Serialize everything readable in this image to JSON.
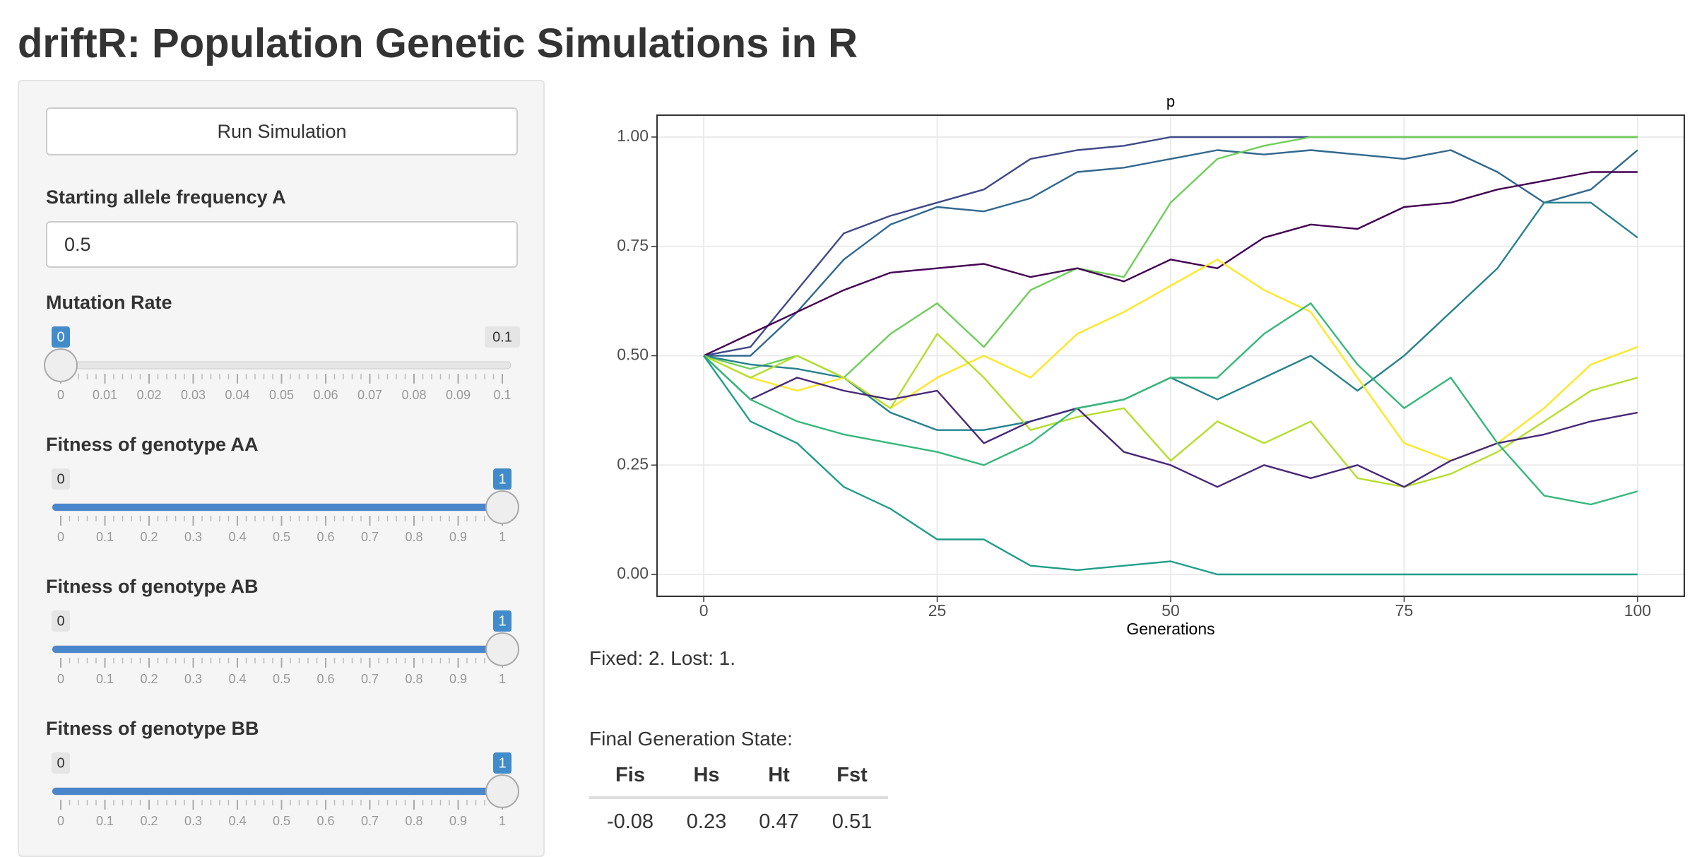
{
  "header": {
    "title": "driftR: Population Genetic Simulations in R"
  },
  "sidebar": {
    "button": "Run Simulation",
    "input": {
      "label": "Starting allele frequency A",
      "value": 0.5
    },
    "sliders": [
      {
        "label": "Mutation Rate",
        "min": 0,
        "max": 0.1,
        "value": 0,
        "ticks": [
          0,
          0.01,
          0.02,
          0.03,
          0.04,
          0.05,
          0.06,
          0.07,
          0.08,
          0.09,
          0.1
        ]
      },
      {
        "label": "Fitness of genotype AA",
        "min": 0,
        "max": 1,
        "value": 1,
        "ticks": [
          0,
          0.1,
          0.2,
          0.3,
          0.4,
          0.5,
          0.6,
          0.7,
          0.8,
          0.9,
          1
        ]
      },
      {
        "label": "Fitness of genotype AB",
        "min": 0,
        "max": 1,
        "value": 1,
        "ticks": [
          0,
          0.1,
          0.2,
          0.3,
          0.4,
          0.5,
          0.6,
          0.7,
          0.8,
          0.9,
          1
        ]
      },
      {
        "label": "Fitness of genotype BB",
        "min": 0,
        "max": 1,
        "value": 1,
        "ticks": [
          0,
          0.1,
          0.2,
          0.3,
          0.4,
          0.5,
          0.6,
          0.7,
          0.8,
          0.9,
          1
        ]
      }
    ]
  },
  "chart_data": {
    "type": "line",
    "title": "p",
    "x_label": "Generations",
    "x": [
      0,
      5,
      10,
      15,
      20,
      25,
      30,
      35,
      40,
      45,
      50,
      55,
      60,
      65,
      70,
      75,
      80,
      85,
      90,
      95,
      100
    ],
    "xlim": [
      -5,
      105
    ],
    "xticks": [
      0,
      25,
      50,
      75,
      100
    ],
    "ylim": [
      -0.05,
      1.05
    ],
    "yticks": [
      {
        "value": 0,
        "label": "0.00"
      },
      {
        "value": 0.25,
        "label": "0.25"
      },
      {
        "value": 0.5,
        "label": "0.50"
      },
      {
        "value": 0.75,
        "label": "0.75"
      },
      {
        "value": 1,
        "label": "1.00"
      }
    ],
    "grid": true,
    "series": [
      {
        "color": "#3e4989",
        "values": [
          0.5,
          0.52,
          0.65,
          0.78,
          0.82,
          0.85,
          0.88,
          0.95,
          0.97,
          0.98,
          1.0,
          1.0,
          1.0,
          1.0,
          1.0,
          1.0,
          1.0,
          1.0,
          1.0,
          1.0,
          1.0
        ]
      },
      {
        "color": "#31688e",
        "values": [
          0.5,
          0.5,
          0.6,
          0.72,
          0.8,
          0.84,
          0.83,
          0.86,
          0.92,
          0.93,
          0.95,
          0.97,
          0.96,
          0.97,
          0.96,
          0.95,
          0.97,
          0.92,
          0.85,
          0.88,
          0.97
        ]
      },
      {
        "color": "#6ece58",
        "values": [
          0.5,
          0.47,
          0.5,
          0.45,
          0.55,
          0.62,
          0.52,
          0.65,
          0.7,
          0.68,
          0.85,
          0.95,
          0.98,
          1.0,
          1.0,
          1.0,
          1.0,
          1.0,
          1.0,
          1.0,
          1.0
        ]
      },
      {
        "color": "#440154",
        "values": [
          0.5,
          0.55,
          0.6,
          0.65,
          0.69,
          0.7,
          0.71,
          0.68,
          0.7,
          0.67,
          0.72,
          0.7,
          0.77,
          0.8,
          0.79,
          0.84,
          0.85,
          0.88,
          0.9,
          0.92,
          0.92
        ]
      },
      {
        "color": "#26828e",
        "values": [
          0.5,
          0.48,
          0.47,
          0.45,
          0.37,
          0.33,
          0.33,
          0.35,
          0.38,
          0.4,
          0.45,
          0.4,
          0.45,
          0.5,
          0.42,
          0.5,
          0.6,
          0.7,
          0.85,
          0.85,
          0.77
        ]
      },
      {
        "color": "#fde725",
        "values": [
          0.5,
          0.45,
          0.42,
          0.45,
          0.38,
          0.45,
          0.5,
          0.45,
          0.55,
          0.6,
          0.66,
          0.72,
          0.65,
          0.6,
          0.45,
          0.3,
          0.26,
          0.3,
          0.38,
          0.48,
          0.52
        ]
      },
      {
        "color": "#b5de2b",
        "values": [
          0.5,
          0.45,
          0.5,
          0.45,
          0.38,
          0.55,
          0.45,
          0.33,
          0.36,
          0.38,
          0.26,
          0.35,
          0.3,
          0.35,
          0.22,
          0.2,
          0.23,
          0.28,
          0.35,
          0.42,
          0.45
        ]
      },
      {
        "color": "#482878",
        "values": [
          0.5,
          0.4,
          0.45,
          0.42,
          0.4,
          0.42,
          0.3,
          0.35,
          0.38,
          0.28,
          0.25,
          0.2,
          0.25,
          0.22,
          0.25,
          0.2,
          0.26,
          0.3,
          0.32,
          0.35,
          0.37
        ]
      },
      {
        "color": "#35b779",
        "values": [
          0.5,
          0.4,
          0.35,
          0.32,
          0.3,
          0.28,
          0.25,
          0.3,
          0.38,
          0.4,
          0.45,
          0.45,
          0.55,
          0.62,
          0.48,
          0.38,
          0.45,
          0.3,
          0.18,
          0.16,
          0.19
        ]
      },
      {
        "color": "#1f9e89",
        "values": [
          0.5,
          0.35,
          0.3,
          0.2,
          0.15,
          0.08,
          0.08,
          0.02,
          0.01,
          0.02,
          0.03,
          0,
          0,
          0,
          0,
          0,
          0,
          0,
          0,
          0,
          0
        ]
      }
    ]
  },
  "results": {
    "summary": "Fixed: 2. Lost: 1.",
    "table_title": "Final Generation State:",
    "table": {
      "columns": [
        "Fis",
        "Hs",
        "Ht",
        "Fst"
      ],
      "rows": [
        [
          -0.08,
          0.23,
          0.47,
          0.51
        ]
      ]
    }
  }
}
